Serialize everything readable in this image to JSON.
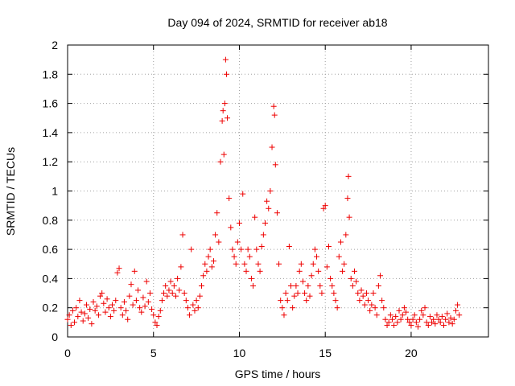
{
  "chart_data": {
    "type": "scatter",
    "title": "Day 094 of 2024, SRMTID for receiver ab18",
    "xlabel": "GPS time / hours",
    "ylabel": "SRMTID / TECUs",
    "xlim": [
      0,
      24.5
    ],
    "ylim": [
      0,
      2
    ],
    "xticks": [
      0,
      5,
      10,
      15,
      20
    ],
    "yticks": [
      0,
      0.2,
      0.4,
      0.6,
      0.8,
      1,
      1.2,
      1.4,
      1.6,
      1.8,
      2
    ],
    "xtick_labels": [
      "0",
      "5",
      "10",
      "15",
      "20"
    ],
    "ytick_labels": [
      "0",
      "0.2",
      "0.4",
      "0.6",
      "0.8",
      "1",
      "1.2",
      "1.4",
      "1.6",
      "1.8",
      "2"
    ],
    "grid": true,
    "marker": "+",
    "color": "#ee0000",
    "series": [
      {
        "name": "SRMTID",
        "points": [
          [
            0.0,
            0.12
          ],
          [
            0.1,
            0.15
          ],
          [
            0.2,
            0.08
          ],
          [
            0.3,
            0.18
          ],
          [
            0.4,
            0.1
          ],
          [
            0.5,
            0.2
          ],
          [
            0.6,
            0.14
          ],
          [
            0.7,
            0.25
          ],
          [
            0.8,
            0.17
          ],
          [
            0.9,
            0.11
          ],
          [
            1.0,
            0.16
          ],
          [
            1.1,
            0.22
          ],
          [
            1.2,
            0.13
          ],
          [
            1.3,
            0.19
          ],
          [
            1.4,
            0.09
          ],
          [
            1.5,
            0.24
          ],
          [
            1.6,
            0.18
          ],
          [
            1.7,
            0.21
          ],
          [
            1.8,
            0.15
          ],
          [
            1.9,
            0.28
          ],
          [
            2.0,
            0.3
          ],
          [
            2.1,
            0.23
          ],
          [
            2.2,
            0.17
          ],
          [
            2.3,
            0.26
          ],
          [
            2.4,
            0.2
          ],
          [
            2.5,
            0.14
          ],
          [
            2.6,
            0.22
          ],
          [
            2.7,
            0.18
          ],
          [
            2.8,
            0.25
          ],
          [
            2.9,
            0.44
          ],
          [
            3.0,
            0.47
          ],
          [
            3.1,
            0.2
          ],
          [
            3.2,
            0.15
          ],
          [
            3.3,
            0.24
          ],
          [
            3.4,
            0.18
          ],
          [
            3.5,
            0.12
          ],
          [
            3.6,
            0.28
          ],
          [
            3.7,
            0.36
          ],
          [
            3.8,
            0.22
          ],
          [
            3.9,
            0.45
          ],
          [
            4.0,
            0.25
          ],
          [
            4.1,
            0.32
          ],
          [
            4.2,
            0.2
          ],
          [
            4.3,
            0.17
          ],
          [
            4.4,
            0.27
          ],
          [
            4.5,
            0.21
          ],
          [
            4.6,
            0.38
          ],
          [
            4.7,
            0.24
          ],
          [
            4.8,
            0.3
          ],
          [
            4.9,
            0.19
          ],
          [
            5.0,
            0.15
          ],
          [
            5.1,
            0.1
          ],
          [
            5.2,
            0.08
          ],
          [
            5.3,
            0.14
          ],
          [
            5.4,
            0.18
          ],
          [
            5.5,
            0.25
          ],
          [
            5.6,
            0.3
          ],
          [
            5.7,
            0.35
          ],
          [
            5.8,
            0.28
          ],
          [
            5.9,
            0.32
          ],
          [
            6.0,
            0.38
          ],
          [
            6.1,
            0.3
          ],
          [
            6.2,
            0.35
          ],
          [
            6.3,
            0.28
          ],
          [
            6.4,
            0.4
          ],
          [
            6.5,
            0.32
          ],
          [
            6.6,
            0.48
          ],
          [
            6.7,
            0.7
          ],
          [
            6.8,
            0.3
          ],
          [
            6.9,
            0.25
          ],
          [
            7.0,
            0.2
          ],
          [
            7.1,
            0.15
          ],
          [
            7.2,
            0.6
          ],
          [
            7.3,
            0.22
          ],
          [
            7.4,
            0.18
          ],
          [
            7.5,
            0.25
          ],
          [
            7.6,
            0.2
          ],
          [
            7.7,
            0.28
          ],
          [
            7.8,
            0.35
          ],
          [
            7.9,
            0.42
          ],
          [
            8.0,
            0.5
          ],
          [
            8.1,
            0.45
          ],
          [
            8.2,
            0.55
          ],
          [
            8.3,
            0.6
          ],
          [
            8.4,
            0.48
          ],
          [
            8.5,
            0.52
          ],
          [
            8.6,
            0.7
          ],
          [
            8.7,
            0.85
          ],
          [
            8.8,
            0.65
          ],
          [
            8.9,
            1.2
          ],
          [
            9.0,
            1.48
          ],
          [
            9.05,
            1.55
          ],
          [
            9.1,
            1.25
          ],
          [
            9.15,
            1.6
          ],
          [
            9.2,
            1.9
          ],
          [
            9.25,
            1.8
          ],
          [
            9.3,
            1.5
          ],
          [
            9.4,
            0.95
          ],
          [
            9.5,
            0.75
          ],
          [
            9.6,
            0.6
          ],
          [
            9.7,
            0.55
          ],
          [
            9.8,
            0.5
          ],
          [
            9.9,
            0.65
          ],
          [
            10.0,
            0.78
          ],
          [
            10.1,
            0.6
          ],
          [
            10.2,
            0.98
          ],
          [
            10.3,
            0.5
          ],
          [
            10.4,
            0.45
          ],
          [
            10.5,
            0.6
          ],
          [
            10.6,
            0.55
          ],
          [
            10.7,
            0.4
          ],
          [
            10.8,
            0.35
          ],
          [
            10.9,
            0.82
          ],
          [
            11.0,
            0.6
          ],
          [
            11.1,
            0.5
          ],
          [
            11.2,
            0.45
          ],
          [
            11.3,
            0.62
          ],
          [
            11.4,
            0.7
          ],
          [
            11.5,
            0.78
          ],
          [
            11.6,
            0.93
          ],
          [
            11.7,
            0.88
          ],
          [
            11.8,
            1.0
          ],
          [
            11.9,
            1.3
          ],
          [
            12.0,
            1.58
          ],
          [
            12.05,
            1.52
          ],
          [
            12.1,
            1.18
          ],
          [
            12.2,
            0.85
          ],
          [
            12.3,
            0.5
          ],
          [
            12.4,
            0.25
          ],
          [
            12.5,
            0.2
          ],
          [
            12.6,
            0.15
          ],
          [
            12.7,
            0.3
          ],
          [
            12.8,
            0.25
          ],
          [
            12.9,
            0.62
          ],
          [
            13.0,
            0.35
          ],
          [
            13.1,
            0.2
          ],
          [
            13.2,
            0.28
          ],
          [
            13.3,
            0.35
          ],
          [
            13.4,
            0.3
          ],
          [
            13.5,
            0.45
          ],
          [
            13.6,
            0.5
          ],
          [
            13.7,
            0.38
          ],
          [
            13.8,
            0.3
          ],
          [
            13.9,
            0.25
          ],
          [
            14.0,
            0.35
          ],
          [
            14.1,
            0.28
          ],
          [
            14.2,
            0.42
          ],
          [
            14.3,
            0.5
          ],
          [
            14.4,
            0.6
          ],
          [
            14.5,
            0.55
          ],
          [
            14.6,
            0.45
          ],
          [
            14.7,
            0.35
          ],
          [
            14.8,
            0.3
          ],
          [
            14.9,
            0.88
          ],
          [
            15.0,
            0.9
          ],
          [
            15.1,
            0.48
          ],
          [
            15.2,
            0.62
          ],
          [
            15.3,
            0.4
          ],
          [
            15.4,
            0.35
          ],
          [
            15.5,
            0.3
          ],
          [
            15.6,
            0.25
          ],
          [
            15.7,
            0.2
          ],
          [
            15.8,
            0.55
          ],
          [
            15.9,
            0.65
          ],
          [
            16.0,
            0.45
          ],
          [
            16.1,
            0.5
          ],
          [
            16.2,
            0.7
          ],
          [
            16.3,
            0.95
          ],
          [
            16.35,
            1.1
          ],
          [
            16.4,
            0.82
          ],
          [
            16.5,
            0.4
          ],
          [
            16.6,
            0.35
          ],
          [
            16.7,
            0.45
          ],
          [
            16.8,
            0.38
          ],
          [
            16.9,
            0.3
          ],
          [
            17.0,
            0.25
          ],
          [
            17.1,
            0.32
          ],
          [
            17.2,
            0.28
          ],
          [
            17.3,
            0.22
          ],
          [
            17.4,
            0.3
          ],
          [
            17.5,
            0.25
          ],
          [
            17.6,
            0.18
          ],
          [
            17.7,
            0.22
          ],
          [
            17.8,
            0.3
          ],
          [
            17.9,
            0.2
          ],
          [
            18.0,
            0.15
          ],
          [
            18.1,
            0.35
          ],
          [
            18.2,
            0.42
          ],
          [
            18.3,
            0.25
          ],
          [
            18.4,
            0.2
          ],
          [
            18.5,
            0.12
          ],
          [
            18.6,
            0.08
          ],
          [
            18.7,
            0.1
          ],
          [
            18.8,
            0.15
          ],
          [
            18.9,
            0.12
          ],
          [
            19.0,
            0.08
          ],
          [
            19.1,
            0.14
          ],
          [
            19.2,
            0.1
          ],
          [
            19.3,
            0.18
          ],
          [
            19.4,
            0.12
          ],
          [
            19.5,
            0.15
          ],
          [
            19.6,
            0.2
          ],
          [
            19.7,
            0.17
          ],
          [
            19.8,
            0.12
          ],
          [
            19.9,
            0.1
          ],
          [
            20.0,
            0.08
          ],
          [
            20.1,
            0.12
          ],
          [
            20.2,
            0.15
          ],
          [
            20.3,
            0.1
          ],
          [
            20.4,
            0.07
          ],
          [
            20.5,
            0.12
          ],
          [
            20.6,
            0.18
          ],
          [
            20.7,
            0.15
          ],
          [
            20.8,
            0.2
          ],
          [
            20.9,
            0.1
          ],
          [
            21.0,
            0.08
          ],
          [
            21.1,
            0.14
          ],
          [
            21.2,
            0.1
          ],
          [
            21.3,
            0.12
          ],
          [
            21.4,
            0.09
          ],
          [
            21.5,
            0.15
          ],
          [
            21.6,
            0.12
          ],
          [
            21.7,
            0.1
          ],
          [
            21.8,
            0.14
          ],
          [
            21.9,
            0.08
          ],
          [
            22.0,
            0.12
          ],
          [
            22.1,
            0.16
          ],
          [
            22.2,
            0.1
          ],
          [
            22.3,
            0.13
          ],
          [
            22.4,
            0.09
          ],
          [
            22.5,
            0.12
          ],
          [
            22.6,
            0.18
          ],
          [
            22.7,
            0.22
          ],
          [
            22.8,
            0.15
          ]
        ]
      }
    ]
  }
}
